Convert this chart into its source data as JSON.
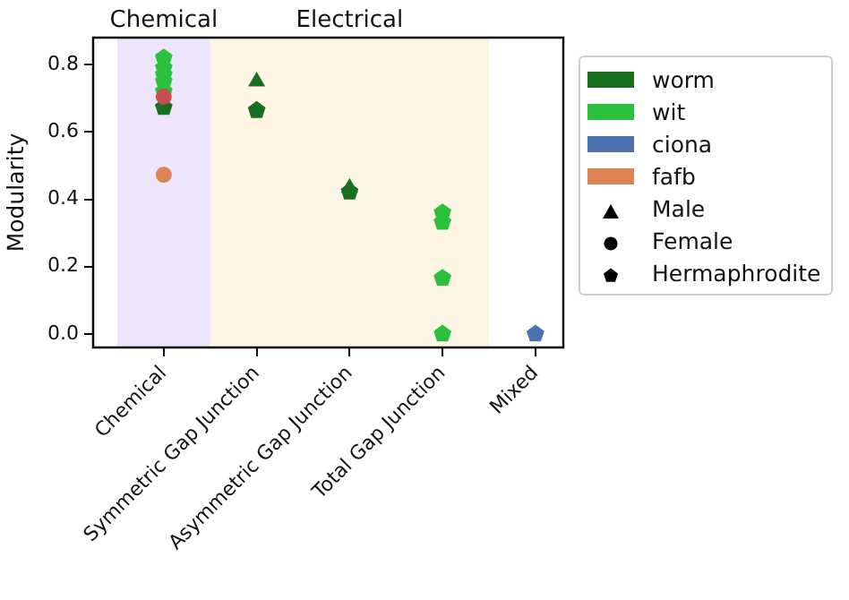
{
  "chart_data": {
    "type": "scatter",
    "ylabel": "Modularity",
    "legend": "right",
    "grid": false,
    "categories": [
      "Chemical",
      "Symmetric Gap Junction",
      "Asymmetric Gap Junction",
      "Total Gap Junction",
      "Mixed"
    ],
    "ylim": [
      -0.04,
      0.88
    ],
    "yticks": [
      {
        "value": 0,
        "label": "0.0"
      },
      {
        "value": 0.2,
        "label": "0.2"
      },
      {
        "value": 0.4,
        "label": "0.4"
      },
      {
        "value": 0.6,
        "label": "0.6"
      },
      {
        "value": 0.8,
        "label": "0.8"
      }
    ],
    "bands": [
      {
        "axis": "x",
        "from": "Chemical",
        "to": "Chemical",
        "label": "Chemical",
        "color": "#ede5fb"
      },
      {
        "axis": "x",
        "from": "Symmetric Gap Junction",
        "to": "Total Gap Junction",
        "label": "Electrical",
        "color": "#fdf6e4"
      }
    ],
    "series": [
      {
        "name": "worm",
        "color": "#18701f",
        "x": [
          "Chemical",
          "Symmetric Gap Junction",
          "Asymmetric Gap Junction"
        ],
        "values": [
          0.673,
          0.664,
          0.422
        ]
      },
      {
        "color": "#18701f",
        "marker": "triangle",
        "x": [
          "Symmetric Gap Junction",
          "Asymmetric Gap Junction"
        ],
        "values": [
          0.75,
          0.434
        ]
      },
      {
        "name": "wit",
        "color": "#2cc13d",
        "x": [
          "Chemical",
          "Chemical",
          "Chemical",
          "Chemical",
          "Chemical",
          "Total Gap Junction",
          "Total Gap Junction",
          "Total Gap Junction",
          "Total Gap Junction"
        ],
        "values": [
          0.82,
          0.79,
          0.77,
          0.75,
          0.72,
          0.332,
          0.36,
          0.166,
          0
        ]
      },
      {
        "name": "ciona",
        "color": "#4a72b0",
        "x": [
          "Mixed"
        ],
        "values": [
          0
        ]
      },
      {
        "name": "fafb",
        "color": "#dd8452",
        "marker": "circle",
        "x": [
          "Chemical"
        ],
        "values": [
          0.473
        ]
      },
      {
        "color": "#c44e52",
        "marker": "circle",
        "x": [
          "Chemical"
        ],
        "values": [
          0.705
        ]
      },
      {
        "name": "Male",
        "color": "#000000",
        "marker": "triangle",
        "values": [
          null,
          null,
          null,
          null,
          null
        ]
      },
      {
        "name": "Female",
        "color": "#000000",
        "marker": "circle",
        "values": [
          null,
          null,
          null,
          null,
          null
        ]
      },
      {
        "name": "Hermaphrodite",
        "color": "#000000",
        "values": [
          null,
          null,
          null,
          null,
          null
        ]
      }
    ]
  }
}
